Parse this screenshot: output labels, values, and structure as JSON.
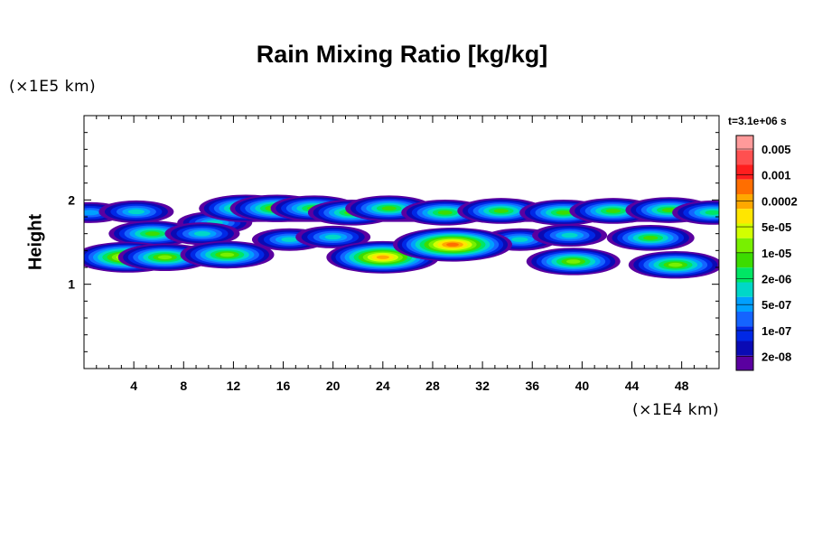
{
  "chart_data": {
    "type": "heatmap",
    "title": "Rain Mixing Ratio [kg/kg]",
    "ylabel": "Height",
    "y_exponent_label": "(×1E5 km)",
    "x_exponent_label": "(×1E4 km)",
    "time_label": "t=3.1e+06 s",
    "xlim": [
      0,
      51
    ],
    "ylim": [
      0,
      3
    ],
    "x_ticks": [
      "4",
      "8",
      "12",
      "16",
      "20",
      "24",
      "28",
      "32",
      "36",
      "40",
      "44",
      "48"
    ],
    "y_ticks": [
      "1",
      "2"
    ],
    "colorbar": {
      "labels": [
        "0.005",
        "0.001",
        "0.0002",
        "5e-05",
        "1e-05",
        "2e-06",
        "5e-07",
        "1e-07",
        "2e-08"
      ],
      "colors": [
        "#ff9a9a",
        "#ff5050",
        "#ff1e1e",
        "#ff6e00",
        "#ffa800",
        "#ffe600",
        "#d2ff00",
        "#78f000",
        "#3cdc00",
        "#00e664",
        "#00d7c8",
        "#00a0ff",
        "#1464ff",
        "#0028e6",
        "#0a0ab4",
        "#5a00a0"
      ]
    },
    "layers": [
      {
        "name": "upper band",
        "center_height": 1.85
      },
      {
        "name": "lower band",
        "center_height": 1.3
      }
    ],
    "cells": [
      {
        "x": 0.5,
        "y": 1.85,
        "level": 4
      },
      {
        "x": 4.2,
        "y": 1.86,
        "level": 5
      },
      {
        "x": 10.5,
        "y": 1.73,
        "level": 5
      },
      {
        "x": 13.0,
        "y": 1.9,
        "level": 8
      },
      {
        "x": 15.5,
        "y": 1.9,
        "level": 8
      },
      {
        "x": 18.5,
        "y": 1.9,
        "level": 7
      },
      {
        "x": 21.5,
        "y": 1.85,
        "level": 7
      },
      {
        "x": 24.5,
        "y": 1.9,
        "level": 7
      },
      {
        "x": 29.0,
        "y": 1.85,
        "level": 7
      },
      {
        "x": 33.5,
        "y": 1.87,
        "level": 7
      },
      {
        "x": 38.5,
        "y": 1.85,
        "level": 7
      },
      {
        "x": 42.5,
        "y": 1.87,
        "level": 7
      },
      {
        "x": 47.0,
        "y": 1.88,
        "level": 7
      },
      {
        "x": 50.5,
        "y": 1.85,
        "level": 6
      },
      {
        "x": 5.5,
        "y": 1.6,
        "level": 7
      },
      {
        "x": 9.5,
        "y": 1.6,
        "level": 5
      },
      {
        "x": 16.5,
        "y": 1.53,
        "level": 5
      },
      {
        "x": 20.0,
        "y": 1.56,
        "level": 5
      },
      {
        "x": 35.0,
        "y": 1.53,
        "level": 5
      },
      {
        "x": 39.0,
        "y": 1.58,
        "level": 5
      },
      {
        "x": 45.5,
        "y": 1.55,
        "level": 7
      },
      {
        "x": 3.5,
        "y": 1.32,
        "level": 10
      },
      {
        "x": 6.5,
        "y": 1.32,
        "level": 8
      },
      {
        "x": 11.5,
        "y": 1.35,
        "level": 8
      },
      {
        "x": 24.0,
        "y": 1.32,
        "level": 11
      },
      {
        "x": 29.6,
        "y": 1.47,
        "level": 12
      },
      {
        "x": 39.3,
        "y": 1.27,
        "level": 8
      },
      {
        "x": 47.5,
        "y": 1.23,
        "level": 8
      }
    ]
  }
}
